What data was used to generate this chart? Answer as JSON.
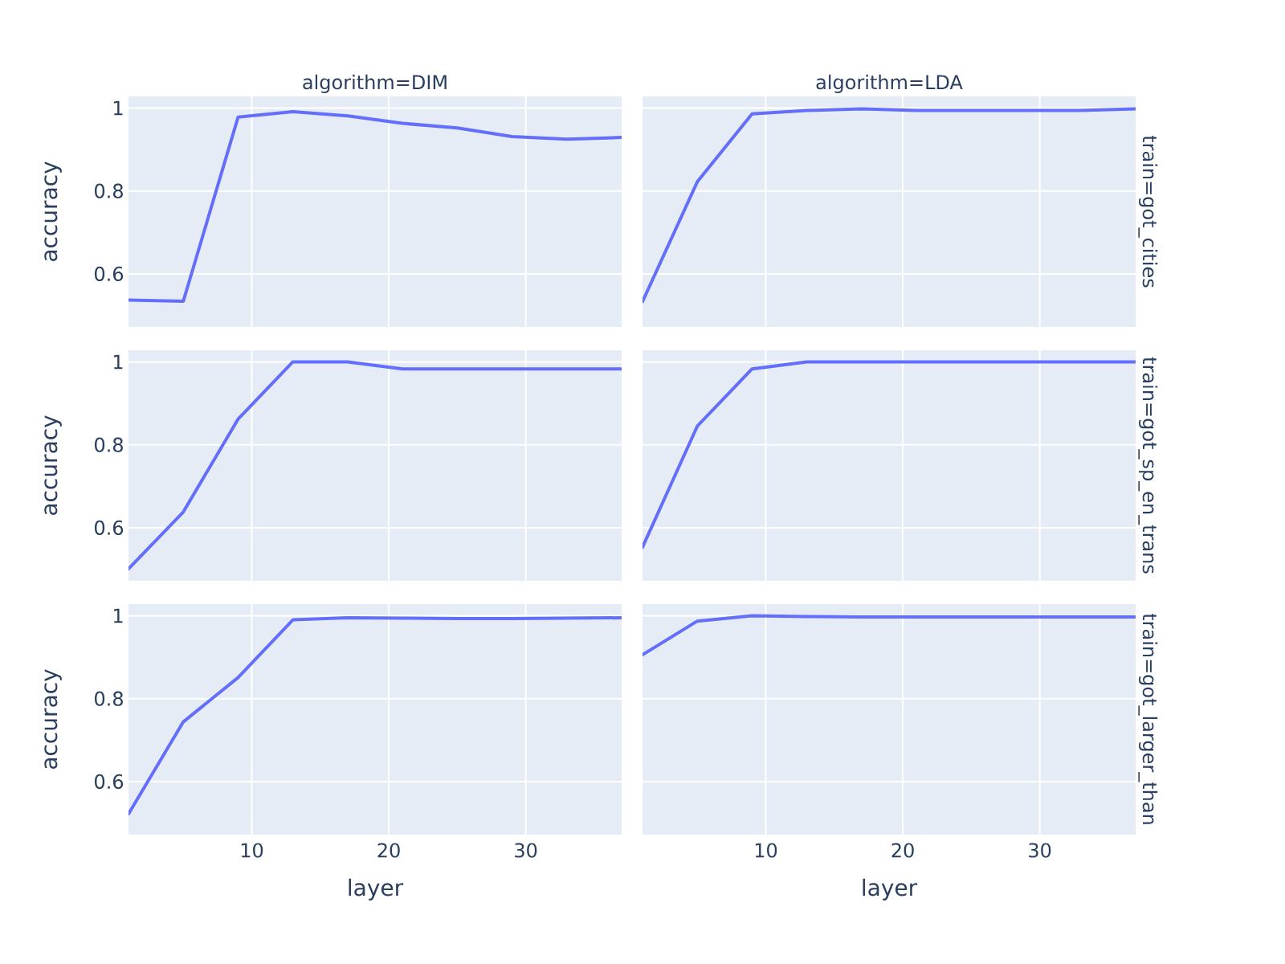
{
  "chart_data": [
    {
      "type": "line",
      "title": "algorithm=DIM",
      "ylabel": "accuracy",
      "x": [
        1,
        5,
        9,
        13,
        17,
        21,
        25,
        29,
        33,
        37
      ],
      "values": [
        0.537,
        0.534,
        0.978,
        0.991,
        0.981,
        0.963,
        0.952,
        0.931,
        0.925,
        0.929
      ],
      "color": "#636efa",
      "xlim": [
        1,
        37
      ],
      "xticks": [
        10,
        20,
        30
      ],
      "ylim": [
        0.472,
        1.028
      ],
      "yticks": [
        0.6,
        0.8,
        1
      ],
      "grid": true,
      "tick_labels": "y"
    },
    {
      "type": "line",
      "title": "algorithm=LDA",
      "annotations": [
        "train=got_cities"
      ],
      "x": [
        1,
        5,
        9,
        13,
        17,
        21,
        25,
        29,
        33,
        37
      ],
      "values": [
        0.533,
        0.822,
        0.986,
        0.994,
        0.998,
        0.994,
        0.994,
        0.994,
        0.994,
        0.998
      ],
      "color": "#636efa",
      "xlim": [
        1,
        37
      ],
      "xticks": [
        10,
        20,
        30
      ],
      "ylim": [
        0.472,
        1.028
      ],
      "yticks": [
        0.6,
        0.8,
        1
      ],
      "grid": true,
      "tick_labels": false
    },
    {
      "type": "line",
      "ylabel": "accuracy",
      "x": [
        1,
        5,
        9,
        13,
        17,
        21,
        25,
        29,
        33,
        37
      ],
      "values": [
        0.501,
        0.638,
        0.862,
        1.0,
        1.0,
        0.983,
        0.983,
        0.983,
        0.983,
        0.983
      ],
      "color": "#636efa",
      "xlim": [
        1,
        37
      ],
      "xticks": [
        10,
        20,
        30
      ],
      "ylim": [
        0.472,
        1.028
      ],
      "yticks": [
        0.6,
        0.8,
        1
      ],
      "grid": true,
      "tick_labels": "y"
    },
    {
      "type": "line",
      "annotations": [
        "train=got_sp_en_trans"
      ],
      "x": [
        1,
        5,
        9,
        13,
        17,
        21,
        25,
        29,
        33,
        37
      ],
      "values": [
        0.553,
        0.845,
        0.983,
        1.0,
        1.0,
        1.0,
        1.0,
        1.0,
        1.0,
        1.0
      ],
      "color": "#636efa",
      "xlim": [
        1,
        37
      ],
      "xticks": [
        10,
        20,
        30
      ],
      "ylim": [
        0.472,
        1.028
      ],
      "yticks": [
        0.6,
        0.8,
        1
      ],
      "grid": true,
      "tick_labels": false
    },
    {
      "type": "line",
      "xlabel": "layer",
      "ylabel": "accuracy",
      "x": [
        1,
        5,
        9,
        13,
        17,
        21,
        25,
        29,
        33,
        37
      ],
      "values": [
        0.522,
        0.744,
        0.851,
        0.99,
        0.995,
        0.994,
        0.993,
        0.993,
        0.994,
        0.995
      ],
      "color": "#636efa",
      "xlim": [
        1,
        37
      ],
      "xticks": [
        10,
        20,
        30
      ],
      "ylim": [
        0.472,
        1.028
      ],
      "yticks": [
        0.6,
        0.8,
        1
      ],
      "grid": true
    },
    {
      "type": "line",
      "xlabel": "layer",
      "annotations": [
        "train=got_larger_than"
      ],
      "x": [
        1,
        5,
        9,
        13,
        17,
        21,
        25,
        29,
        33,
        37
      ],
      "values": [
        0.906,
        0.987,
        1.0,
        0.998,
        0.997,
        0.997,
        0.997,
        0.997,
        0.997,
        0.997
      ],
      "color": "#636efa",
      "xlim": [
        1,
        37
      ],
      "xticks": [
        10,
        20,
        30
      ],
      "ylim": [
        0.472,
        1.028
      ],
      "yticks": [
        0.6,
        0.8,
        1
      ],
      "grid": true,
      "tick_labels": "x"
    }
  ]
}
